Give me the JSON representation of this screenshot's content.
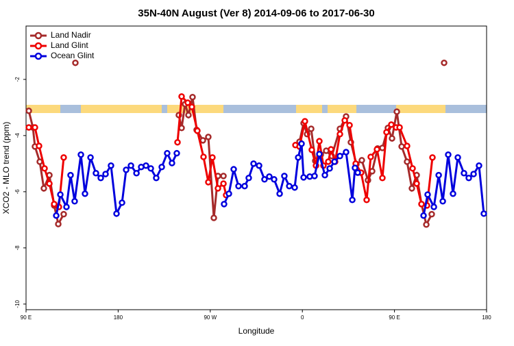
{
  "chart_data": {
    "type": "line",
    "title": "35N-40N August (Ver 8)   2014-09-06 to 2017-06-30",
    "xlabel": "Longitude",
    "ylabel": "XCO2 - MLO trend (ppm)",
    "xlim": [
      90,
      540
    ],
    "ylim": [
      -10.2,
      -0.1
    ],
    "xticks": [
      {
        "value": 90,
        "label": "90 E"
      },
      {
        "value": 180,
        "label": "180"
      },
      {
        "value": 270,
        "label": "90 W"
      },
      {
        "value": 360,
        "label": "0"
      },
      {
        "value": 450,
        "label": "90 E"
      },
      {
        "value": 540,
        "label": "180"
      }
    ],
    "yticks": [
      -2,
      -4,
      -6,
      -8,
      -10
    ],
    "legend": "top-left",
    "series": [
      {
        "name": "Land Nadir",
        "color": "#a52a2a",
        "x": [
          92.7,
          96.7,
          98.7,
          103.4,
          107.4,
          112.8,
          117.5,
          121.5,
          126.8,
          null,
          138.2,
          null,
          239.3,
          242,
          245.4,
          248.7,
          252.7,
          256.7,
          262.8,
          268.1,
          273.5,
          277.5,
          282.9,
          null,
          357.2,
          361.2,
          364.6,
          368.6,
          372.6,
          378,
          383.3,
          388.7,
          396.7,
          402.7,
          407.4,
          412.8,
          418.1,
          424.1,
          428.2,
          433.5,
          438.2,
          443.6,
          447.6,
          452.3,
          457,
          462.3,
          467,
          471.7,
          476.4,
          481.1,
          486.4,
          null,
          498.5
        ],
        "values": [
          -3.12,
          -3.71,
          -4.39,
          -4.93,
          -5.88,
          -5.41,
          -6.49,
          -7.15,
          -6.8,
          null,
          -1.41,
          null,
          -3.27,
          -3.73,
          -2.88,
          -3.27,
          -2.63,
          -3.8,
          -4.17,
          -4.05,
          -6.93,
          -5.44,
          -5.44,
          null,
          -4.22,
          -3.56,
          -3.95,
          -3.76,
          -4.9,
          -4.68,
          -4.54,
          -4.73,
          -3.76,
          -3.32,
          -4.24,
          -5.02,
          -4.88,
          -5.59,
          -5.27,
          -4.46,
          -4.44,
          -3.73,
          -4.1,
          -3.15,
          -4.39,
          -4.93,
          -5.88,
          -5.41,
          -6.44,
          -7.17,
          -6.8,
          null,
          -1.41
        ]
      },
      {
        "name": "Land Glint",
        "color": "#ee0000",
        "x": [
          92.7,
          98.7,
          102.7,
          108.1,
          112.8,
          117.5,
          122.1,
          126.8,
          null,
          238,
          242,
          248,
          252,
          257.4,
          263.4,
          268.1,
          272.1,
          277.5,
          282.9,
          285.5,
          null,
          353.2,
          357.2,
          362.5,
          369.2,
          373.3,
          376.6,
          380.6,
          385.3,
          388,
          392,
          396.7,
          401.4,
          406.1,
          412.1,
          417.4,
          422.8,
          426.8,
          432.9,
          438.2,
          442.2,
          446.9,
          451.6,
          455,
          462.3,
          467.7,
          471.7,
          476.4,
          481.8,
          487.1
        ],
        "values": [
          -3.71,
          -3.71,
          -4.37,
          -5.17,
          -5.71,
          -6.44,
          -6.54,
          -4.78,
          null,
          -4.24,
          -2.61,
          -2.83,
          -2.98,
          -3.83,
          -4.76,
          -5.66,
          -4.78,
          -5.88,
          -5.71,
          -6.12,
          null,
          -4.34,
          -4.39,
          -3.49,
          -4.51,
          -5.07,
          -4.2,
          -5.07,
          -4.93,
          -4.49,
          -4.93,
          -3.95,
          -3.46,
          -3.63,
          -5,
          -5.32,
          -6.29,
          -4.76,
          -4.49,
          -5.51,
          -3.88,
          -3.61,
          -3.71,
          -3.71,
          -4.37,
          -5.17,
          -5.71,
          -6.44,
          -6.49,
          -4.78
        ]
      },
      {
        "name": "Ocean Glint",
        "color": "#0000dd",
        "x": [
          119.5,
          123.5,
          129.5,
          133.5,
          137.5,
          143.6,
          147.6,
          153,
          158.3,
          163,
          167.7,
          173,
          178.4,
          183.8,
          187.8,
          192.5,
          197.9,
          202.5,
          207.2,
          211.9,
          217.2,
          222.6,
          227.9,
          232.6,
          237.3,
          null,
          283.5,
          288.2,
          292.9,
          297.6,
          303.6,
          307.6,
          312.3,
          317.7,
          323,
          327.7,
          332.4,
          337.8,
          342.4,
          347.2,
          352.5,
          355.9,
          359.2,
          361.2,
          367.2,
          371.9,
          376.6,
          382,
          386.7,
          391.4,
          396.7,
          402.7,
          408.8,
          411.4,
          414.1,
          null,
          478.4,
          482.4,
          488.5,
          493.2,
          497.2,
          502.5,
          507.2,
          511.9,
          517.9,
          522.6,
          527.3,
          532.6,
          537.3
        ],
        "values": [
          -6.85,
          -6.1,
          -6.54,
          -5.41,
          -6.34,
          -4.68,
          -6.07,
          -4.78,
          -5.34,
          -5.51,
          -5.37,
          -5.07,
          -6.78,
          -6.39,
          -5.22,
          -5.07,
          -5.34,
          -5.12,
          -5.07,
          -5.17,
          -5.51,
          -5.12,
          -4.63,
          -4.98,
          -4.63,
          null,
          -6.44,
          -6.07,
          -5.2,
          -5.8,
          -5.8,
          -5.51,
          -5,
          -5.07,
          -5.56,
          -5.46,
          -5.56,
          -6.07,
          -5.44,
          -5.8,
          -5.85,
          -4.78,
          -4.29,
          -5.49,
          -5.46,
          -5.44,
          -4.66,
          -5.41,
          -5.17,
          -4.93,
          -4.73,
          -4.59,
          -6.29,
          -5.15,
          -5.32,
          null,
          -6.85,
          -6.1,
          -6.54,
          -5.41,
          -6.34,
          -4.68,
          -6.07,
          -4.78,
          -5.34,
          -5.51,
          -5.37,
          -5.07,
          -6.78
        ]
      }
    ]
  }
}
